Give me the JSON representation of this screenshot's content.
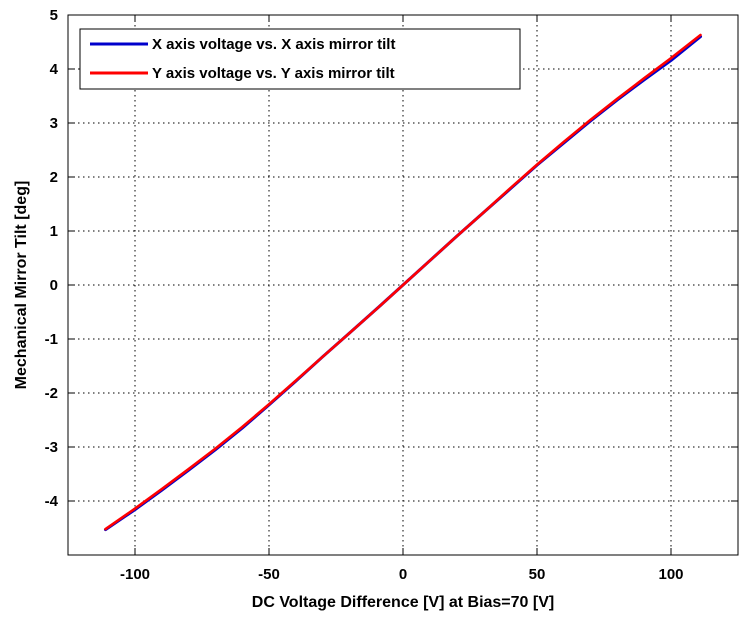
{
  "chart_data": {
    "type": "line",
    "xlabel": "DC Voltage Difference [V] at Bias=70 [V]",
    "ylabel": "Mechanical Mirror Tilt [deg]",
    "xlim": [
      -125,
      125
    ],
    "ylim": [
      -5,
      5
    ],
    "x_ticks": [
      -100,
      -50,
      0,
      50,
      100
    ],
    "y_ticks": [
      -4,
      -3,
      -2,
      -1,
      0,
      1,
      2,
      3,
      4,
      5
    ],
    "x_tick_labels": [
      "-100",
      "-50",
      "0",
      "50",
      "100"
    ],
    "y_tick_labels": [
      "-4",
      "-3",
      "-2",
      "-1",
      "0",
      "1",
      "2",
      "3",
      "4",
      "5"
    ],
    "grid": true,
    "legend_position": "top-left",
    "x": [
      -111,
      -100,
      -90,
      -80,
      -70,
      -60,
      -50,
      -40,
      -30,
      -20,
      -10,
      0,
      10,
      20,
      30,
      40,
      50,
      60,
      70,
      80,
      90,
      100,
      111
    ],
    "series": [
      {
        "name": "X axis voltage vs. X axis mirror tilt",
        "color": "#0000cc",
        "values": [
          -4.53,
          -4.16,
          -3.8,
          -3.43,
          -3.05,
          -2.65,
          -2.22,
          -1.78,
          -1.33,
          -0.89,
          -0.45,
          0.0,
          0.45,
          0.9,
          1.34,
          1.78,
          2.22,
          2.63,
          3.04,
          3.43,
          3.8,
          4.16,
          4.6
        ]
      },
      {
        "name": "Y axis voltage vs. Y axis mirror tilt",
        "color": "#ff0000",
        "values": [
          -4.52,
          -4.14,
          -3.78,
          -3.41,
          -3.03,
          -2.63,
          -2.21,
          -1.77,
          -1.33,
          -0.89,
          -0.45,
          0.0,
          0.45,
          0.9,
          1.34,
          1.79,
          2.23,
          2.65,
          3.06,
          3.45,
          3.83,
          4.2,
          4.63
        ]
      }
    ]
  }
}
